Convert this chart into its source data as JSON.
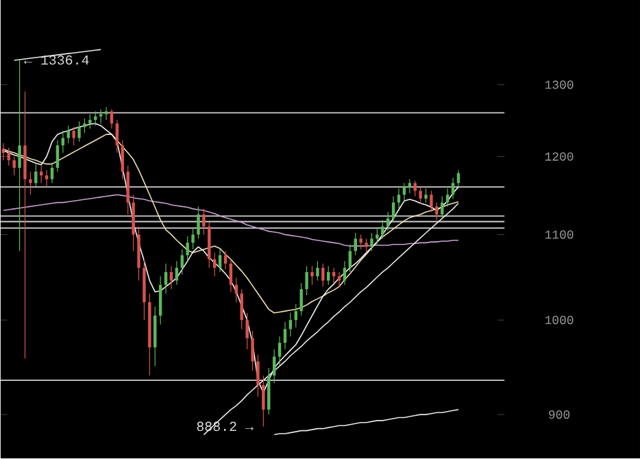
{
  "chart_data": {
    "type": "candlestick",
    "log": true,
    "categories": [
      null,
      null,
      null,
      null,
      null,
      null,
      null,
      null,
      null,
      null,
      null,
      null,
      null,
      null,
      null,
      null,
      null,
      null,
      null,
      null,
      null,
      null,
      null,
      null,
      null,
      null,
      null,
      null,
      null,
      null,
      null,
      null,
      null,
      null,
      null,
      null,
      null,
      null,
      null,
      null,
      null,
      null,
      null,
      null,
      null,
      null,
      null,
      null,
      null,
      null,
      null,
      null,
      null,
      null,
      null,
      null,
      null,
      null,
      null,
      null,
      null,
      null,
      null,
      null,
      null,
      null,
      null,
      null,
      null,
      null,
      null,
      null,
      null,
      null,
      null,
      null,
      null,
      null,
      null,
      null,
      null,
      null,
      null,
      null,
      null
    ],
    "ohlc": [
      [
        1210,
        1218,
        1195,
        1205
      ],
      [
        1205,
        1212,
        1188,
        1195
      ],
      [
        1195,
        1200,
        1175,
        1185
      ],
      [
        1185,
        1336.4,
        1080,
        1215
      ],
      [
        1215,
        1290,
        958,
        1170
      ],
      [
        1170,
        1180,
        1150,
        1165
      ],
      [
        1165,
        1190,
        1160,
        1180
      ],
      [
        1180,
        1188,
        1165,
        1175
      ],
      [
        1175,
        1182,
        1160,
        1170
      ],
      [
        1170,
        1192,
        1165,
        1185
      ],
      [
        1185,
        1222,
        1180,
        1215
      ],
      [
        1215,
        1235,
        1205,
        1225
      ],
      [
        1225,
        1242,
        1218,
        1235
      ],
      [
        1235,
        1240,
        1215,
        1225
      ],
      [
        1225,
        1248,
        1220,
        1240
      ],
      [
        1240,
        1252,
        1232,
        1245
      ],
      [
        1245,
        1258,
        1238,
        1250
      ],
      [
        1250,
        1262,
        1242,
        1255
      ],
      [
        1255,
        1265,
        1245,
        1258
      ],
      [
        1258,
        1268,
        1250,
        1262
      ],
      [
        1262,
        1265,
        1238,
        1245
      ],
      [
        1245,
        1250,
        1205,
        1215
      ],
      [
        1215,
        1222,
        1170,
        1180
      ],
      [
        1180,
        1188,
        1125,
        1140
      ],
      [
        1140,
        1150,
        1080,
        1100
      ],
      [
        1100,
        1110,
        1045,
        1060
      ],
      [
        1060,
        1070,
        1000,
        1020
      ],
      [
        1020,
        1030,
        940,
        970
      ],
      [
        970,
        1015,
        950,
        1005
      ],
      [
        1005,
        1050,
        995,
        1040
      ],
      [
        1040,
        1065,
        1030,
        1055
      ],
      [
        1055,
        1062,
        1035,
        1045
      ],
      [
        1045,
        1068,
        1040,
        1060
      ],
      [
        1060,
        1082,
        1052,
        1075
      ],
      [
        1075,
        1098,
        1068,
        1090
      ],
      [
        1090,
        1108,
        1082,
        1100
      ],
      [
        1100,
        1135,
        1095,
        1125
      ],
      [
        1125,
        1132,
        1100,
        1110
      ],
      [
        1110,
        1115,
        1060,
        1070
      ],
      [
        1070,
        1078,
        1050,
        1060
      ],
      [
        1060,
        1082,
        1055,
        1075
      ],
      [
        1075,
        1080,
        1058,
        1065
      ],
      [
        1065,
        1070,
        1032,
        1040
      ],
      [
        1040,
        1048,
        1020,
        1030
      ],
      [
        1030,
        1035,
        990,
        1000
      ],
      [
        1000,
        1008,
        968,
        980
      ],
      [
        980,
        988,
        945,
        955
      ],
      [
        955,
        962,
        918,
        930
      ],
      [
        930,
        940,
        888.2,
        905
      ],
      [
        905,
        948,
        900,
        940
      ],
      [
        940,
        968,
        932,
        960
      ],
      [
        960,
        982,
        950,
        975
      ],
      [
        975,
        998,
        968,
        990
      ],
      [
        990,
        1008,
        982,
        1000
      ],
      [
        1000,
        1018,
        992,
        1010
      ],
      [
        1010,
        1042,
        1005,
        1035
      ],
      [
        1035,
        1062,
        1028,
        1055
      ],
      [
        1055,
        1062,
        1040,
        1050
      ],
      [
        1050,
        1068,
        1045,
        1060
      ],
      [
        1060,
        1065,
        1038,
        1045
      ],
      [
        1045,
        1062,
        1040,
        1055
      ],
      [
        1055,
        1060,
        1042,
        1050
      ],
      [
        1050,
        1055,
        1038,
        1045
      ],
      [
        1045,
        1068,
        1040,
        1060
      ],
      [
        1060,
        1088,
        1055,
        1080
      ],
      [
        1080,
        1102,
        1075,
        1095
      ],
      [
        1095,
        1100,
        1082,
        1090
      ],
      [
        1090,
        1095,
        1078,
        1085
      ],
      [
        1085,
        1102,
        1080,
        1095
      ],
      [
        1095,
        1108,
        1088,
        1100
      ],
      [
        1100,
        1118,
        1095,
        1110
      ],
      [
        1110,
        1128,
        1105,
        1120
      ],
      [
        1120,
        1148,
        1115,
        1140
      ],
      [
        1140,
        1158,
        1132,
        1150
      ],
      [
        1150,
        1165,
        1142,
        1160
      ],
      [
        1160,
        1170,
        1152,
        1165
      ],
      [
        1165,
        1168,
        1148,
        1155
      ],
      [
        1155,
        1160,
        1138,
        1145
      ],
      [
        1145,
        1158,
        1140,
        1150
      ],
      [
        1150,
        1155,
        1128,
        1135
      ],
      [
        1135,
        1140,
        1118,
        1125
      ],
      [
        1125,
        1148,
        1120,
        1140
      ],
      [
        1140,
        1158,
        1135,
        1150
      ],
      [
        1150,
        1172,
        1145,
        1165
      ],
      [
        1165,
        1182,
        1160,
        1178
      ]
    ],
    "colors": [
      "#d9534f",
      "#d9534f",
      "#d9534f",
      "#5cb85c",
      "#d9534f",
      "#d9534f",
      "#5cb85c",
      "#d9534f",
      "#d9534f",
      "#5cb85c",
      "#5cb85c",
      "#5cb85c",
      "#5cb85c",
      "#d9534f",
      "#5cb85c",
      "#5cb85c",
      "#5cb85c",
      "#5cb85c",
      "#5cb85c",
      "#5cb85c",
      "#d9534f",
      "#d9534f",
      "#d9534f",
      "#d9534f",
      "#d9534f",
      "#d9534f",
      "#d9534f",
      "#d9534f",
      "#5cb85c",
      "#5cb85c",
      "#5cb85c",
      "#d9534f",
      "#5cb85c",
      "#5cb85c",
      "#5cb85c",
      "#5cb85c",
      "#5cb85c",
      "#d9534f",
      "#d9534f",
      "#d9534f",
      "#5cb85c",
      "#d9534f",
      "#d9534f",
      "#d9534f",
      "#d9534f",
      "#d9534f",
      "#d9534f",
      "#d9534f",
      "#d9534f",
      "#5cb85c",
      "#5cb85c",
      "#5cb85c",
      "#5cb85c",
      "#5cb85c",
      "#5cb85c",
      "#5cb85c",
      "#5cb85c",
      "#d9534f",
      "#5cb85c",
      "#d9534f",
      "#5cb85c",
      "#d9534f",
      "#d9534f",
      "#5cb85c",
      "#5cb85c",
      "#5cb85c",
      "#d9534f",
      "#d9534f",
      "#5cb85c",
      "#5cb85c",
      "#5cb85c",
      "#5cb85c",
      "#5cb85c",
      "#5cb85c",
      "#5cb85c",
      "#5cb85c",
      "#d9534f",
      "#d9534f",
      "#5cb85c",
      "#d9534f",
      "#d9534f",
      "#5cb85c",
      "#5cb85c",
      "#5cb85c",
      "#5cb85c"
    ],
    "series": [
      {
        "type": "line",
        "color": "#c8a0d0",
        "values": [
          1130,
          1131,
          1132,
          1133,
          1134,
          1135,
          1136,
          1137,
          1138,
          1139,
          1140,
          1140,
          1141,
          1142,
          1143,
          1144,
          1145,
          1146,
          1147,
          1148,
          1149,
          1150,
          1149,
          1148,
          1146,
          1145,
          1144,
          1142,
          1141,
          1140,
          1139,
          1137,
          1136,
          1135,
          1134,
          1132,
          1131,
          1130,
          1128,
          1126,
          1123,
          1121,
          1119,
          1117,
          1115,
          1112,
          1110,
          1108,
          1106,
          1104,
          1103,
          1102,
          1100,
          1099,
          1098,
          1097,
          1096,
          1094,
          1093,
          1092,
          1091,
          1090,
          1089,
          1087,
          1086,
          1086,
          1086,
          1086,
          1087,
          1087,
          1087,
          1087,
          1088,
          1088,
          1088,
          1089,
          1089,
          1090,
          1090,
          1091,
          1091,
          1092,
          1092,
          1093,
          1093
        ]
      },
      {
        "type": "line",
        "color": "#f0e0b0",
        "values": [
          1210,
          1207,
          1205,
          1202,
          1200,
          1197,
          1195,
          1192,
          1190,
          1190,
          1194,
          1198,
          1202,
          1206,
          1210,
          1214,
          1218,
          1222,
          1226,
          1230,
          1230,
          1222,
          1213,
          1205,
          1196,
          1182,
          1166,
          1150,
          1134,
          1118,
          1106,
          1100,
          1093,
          1087,
          1081,
          1078,
          1080,
          1082,
          1084,
          1086,
          1083,
          1076,
          1070,
          1063,
          1056,
          1048,
          1039,
          1030,
          1021,
          1012,
          1008,
          1009,
          1010,
          1011,
          1012,
          1014,
          1017,
          1021,
          1024,
          1027,
          1031,
          1034,
          1038,
          1046,
          1053,
          1061,
          1069,
          1076,
          1084,
          1091,
          1097,
          1102,
          1107,
          1112,
          1117,
          1121,
          1123,
          1125,
          1128,
          1130,
          1132,
          1134,
          1137,
          1139,
          1141
        ]
      },
      {
        "type": "line",
        "color": "#f4f4f4",
        "values": [
          1208,
          1205,
          1202,
          1200,
          1197,
          1194,
          1191,
          1189,
          1200,
          1220,
          1230,
          1233,
          1235,
          1238,
          1240,
          1242,
          1244,
          1245,
          1242,
          1236,
          1230,
          1220,
          1185,
          1150,
          1115,
          1090,
          1068,
          1045,
          1032,
          1033,
          1038,
          1043,
          1048,
          1058,
          1068,
          1079,
          1085,
          1080,
          1072,
          1066,
          1060,
          1053,
          1045,
          1032,
          1016,
          1000,
          975,
          935,
          922,
          935,
          948,
          955,
          961,
          967,
          973,
          983,
          994,
          1005,
          1016,
          1027,
          1035,
          1041,
          1048,
          1054,
          1060,
          1065,
          1071,
          1078,
          1084,
          1091,
          1100,
          1110,
          1120,
          1131,
          1142,
          1144,
          1142,
          1139,
          1137,
          1134,
          1130,
          1135,
          1142,
          1152,
          1160
        ]
      },
      {
        "type": "line",
        "color": "#e8e8e8",
        "values": [
          null,
          null,
          1336,
          1337,
          1338,
          1339,
          1340,
          1341,
          1342,
          1343,
          1344,
          1345,
          1346,
          1347,
          1348,
          1349,
          1350,
          1351,
          1352,
          null,
          null,
          null,
          null,
          null,
          null,
          null,
          null,
          null,
          null,
          null,
          null,
          null,
          null,
          null,
          null,
          null,
          null,
          null,
          null,
          null,
          null,
          null,
          null,
          null,
          null,
          null,
          null,
          null,
          null,
          null,
          null,
          null,
          null,
          null,
          null,
          null,
          null,
          null,
          null,
          null,
          null,
          null,
          null,
          null,
          null,
          null,
          null,
          null,
          null,
          null,
          null,
          null,
          null,
          null,
          null,
          null,
          null,
          null,
          null,
          null,
          null,
          null,
          null,
          null,
          null
        ]
      },
      {
        "type": "line",
        "color": "#e8e8e8",
        "values": [
          null,
          null,
          null,
          null,
          null,
          null,
          null,
          null,
          null,
          null,
          null,
          null,
          null,
          null,
          null,
          null,
          null,
          null,
          null,
          null,
          null,
          null,
          null,
          null,
          null,
          null,
          null,
          null,
          null,
          null,
          null,
          null,
          null,
          null,
          null,
          null,
          null,
          880,
          885,
          890,
          895,
          900,
          905,
          909,
          914,
          920,
          925,
          930,
          935,
          940,
          945,
          950,
          955,
          961,
          966,
          971,
          977,
          982,
          987,
          993,
          998,
          1004,
          1009,
          1015,
          1020,
          1026,
          1032,
          1037,
          1043,
          1049,
          1055,
          1060,
          1066,
          1072,
          1078,
          1084,
          1090,
          1096,
          1102,
          1108,
          1114,
          1120,
          1126,
          1132,
          1139
        ]
      },
      {
        "type": "line",
        "color": "#e8e8e8",
        "values": [
          null,
          null,
          null,
          null,
          null,
          null,
          null,
          null,
          null,
          null,
          null,
          null,
          null,
          null,
          null,
          null,
          null,
          null,
          null,
          null,
          null,
          null,
          null,
          null,
          null,
          null,
          null,
          null,
          null,
          null,
          null,
          null,
          null,
          null,
          null,
          null,
          null,
          null,
          null,
          null,
          null,
          null,
          null,
          null,
          null,
          null,
          null,
          null,
          null,
          null,
          880,
          881,
          881,
          882,
          883,
          884,
          884,
          885,
          886,
          886,
          887,
          888,
          889,
          889,
          890,
          891,
          892,
          892,
          893,
          894,
          894,
          895,
          896,
          897,
          897,
          898,
          899,
          900,
          900,
          901,
          902,
          902,
          903,
          904,
          905
        ]
      }
    ],
    "ref_lines": [
      {
        "axis": "y",
        "value": 1260,
        "color": "#d0d0d0"
      },
      {
        "axis": "y",
        "value": 1160,
        "color": "#d0d0d0"
      },
      {
        "axis": "y",
        "value": 1123,
        "color": "#d0d0d0"
      },
      {
        "axis": "y",
        "value": 1116,
        "color": "#d0d0d0"
      },
      {
        "axis": "y",
        "value": 1108,
        "color": "#d0d0d0"
      },
      {
        "axis": "y",
        "value": 935,
        "color": "#d0d0d0"
      }
    ],
    "annotations": [
      {
        "text": "← 1336.4",
        "y": 1336.4
      },
      "888.2 →"
    ],
    "ylim": [
      857,
      1429
    ],
    "yticks": [
      900,
      1000,
      1100,
      1200,
      1300
    ],
    "tick_labels": "y"
  }
}
